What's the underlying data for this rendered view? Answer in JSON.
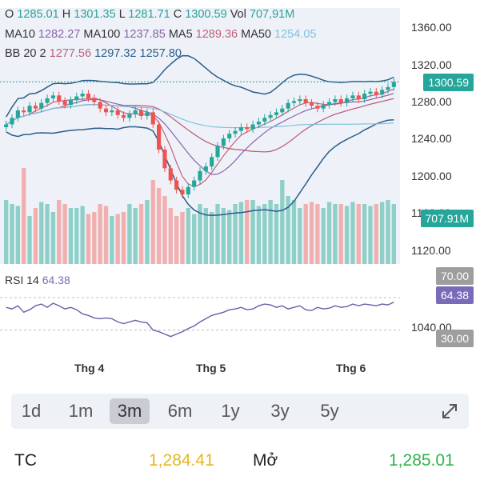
{
  "header": {
    "row1": [
      {
        "label": "O",
        "value": "1285.01",
        "color": "#2aa198"
      },
      {
        "label": "H",
        "value": "1301.35",
        "color": "#2aa198"
      },
      {
        "label": "L",
        "value": "1281.71",
        "color": "#2aa198"
      },
      {
        "label": "C",
        "value": "1300.59",
        "color": "#2aa198"
      },
      {
        "label": "Vol",
        "value": "707,91M",
        "color": "#2aa198"
      }
    ],
    "row2": [
      {
        "label": "MA10",
        "value": "1282.27",
        "color": "#8a63a8"
      },
      {
        "label": "MA100",
        "value": "1237.85",
        "color": "#8a63a8"
      },
      {
        "label": "MA5",
        "value": "1289.36",
        "color": "#c0607a"
      },
      {
        "label": "MA50",
        "value": "1254.05",
        "color": "#7fc1e0"
      }
    ],
    "row3": [
      {
        "label": "BB 20 2",
        "value": "1277.56",
        "color": "#c0607a"
      },
      {
        "label": "",
        "value": "1297.32",
        "color": "#2a5d8a"
      },
      {
        "label": "",
        "value": "1257.80",
        "color": "#2a5d8a"
      }
    ]
  },
  "price_axis": [
    "1360.00",
    "1320.00",
    "1280.00",
    "1240.00",
    "1200.00",
    "1160.00",
    "1120.00"
  ],
  "rsi_axis": [
    "1040.00"
  ],
  "current_price": "1300.59",
  "current_volume": "707.91M",
  "rsi": {
    "label": "RSI 14",
    "value": "64.38",
    "upper": "70.00",
    "lower": "30.00"
  },
  "x_labels": [
    "Thg 4",
    "Thg 5",
    "Thg 6"
  ],
  "ranges": [
    "1d",
    "1m",
    "3m",
    "6m",
    "1y",
    "3y",
    "5y"
  ],
  "active_range": "3m",
  "footer": {
    "tc_label": "TC",
    "tc_value": "1,284.41",
    "open_label": "Mở",
    "open_value": "1,285.01"
  },
  "colors": {
    "up": "#26a69a",
    "down": "#ef5350",
    "tc": "#e6b422",
    "open": "#2db34a"
  },
  "chart_data": {
    "type": "candlestick",
    "closes": [
      1255,
      1262,
      1270,
      1268,
      1275,
      1272,
      1278,
      1283,
      1286,
      1280,
      1276,
      1281,
      1285,
      1288,
      1283,
      1279,
      1272,
      1268,
      1270,
      1265,
      1262,
      1266,
      1270,
      1264,
      1268,
      1255,
      1228,
      1208,
      1195,
      1185,
      1180,
      1188,
      1195,
      1205,
      1210,
      1220,
      1232,
      1240,
      1245,
      1248,
      1252,
      1250,
      1255,
      1258,
      1262,
      1265,
      1268,
      1272,
      1278,
      1280,
      1282,
      1278,
      1275,
      1272,
      1276,
      1279,
      1282,
      1278,
      1283,
      1286,
      1282,
      1288,
      1290,
      1287,
      1292,
      1295,
      1300.59
    ],
    "volumes": [
      160,
      150,
      145,
      240,
      120,
      140,
      155,
      150,
      130,
      160,
      150,
      140,
      140,
      145,
      125,
      130,
      150,
      145,
      120,
      125,
      130,
      150,
      140,
      150,
      160,
      210,
      190,
      170,
      140,
      120,
      130,
      140,
      125,
      150,
      140,
      130,
      150,
      140,
      135,
      150,
      155,
      160,
      160,
      145,
      150,
      160,
      150,
      210,
      170,
      160,
      140,
      150,
      155,
      150,
      140,
      155,
      150,
      150,
      145,
      155,
      150,
      150,
      145,
      150,
      155,
      160,
      150
    ],
    "rsi": [
      58,
      56,
      60,
      52,
      55,
      60,
      62,
      58,
      63,
      60,
      56,
      58,
      55,
      50,
      48,
      45,
      44,
      45,
      44,
      40,
      38,
      40,
      42,
      40,
      39,
      30,
      28,
      25,
      22,
      25,
      28,
      32,
      35,
      40,
      44,
      48,
      50,
      52,
      55,
      56,
      58,
      55,
      56,
      60,
      62,
      61,
      58,
      60,
      56,
      58,
      60,
      55,
      54,
      58,
      56,
      57,
      60,
      58,
      59,
      62,
      60,
      62,
      61,
      60,
      62,
      61,
      64.38
    ]
  }
}
